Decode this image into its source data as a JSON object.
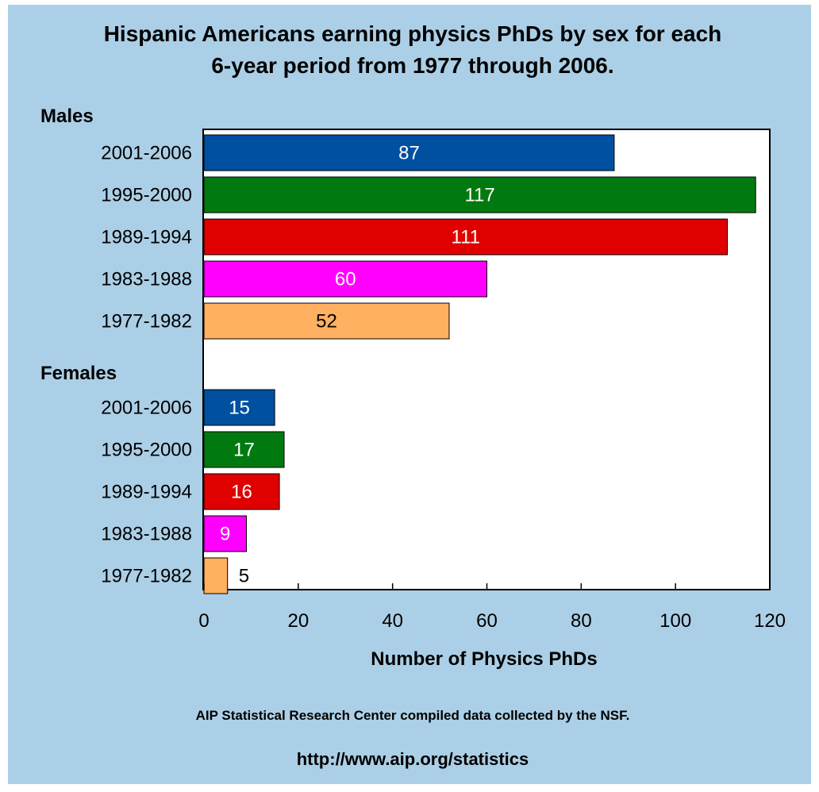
{
  "chart_data": {
    "type": "bar",
    "orientation": "horizontal",
    "title_lines": [
      "Hispanic Americans earning physics PhDs by sex for each",
      "6-year period from 1977 through 2006."
    ],
    "xlabel": "Number of Physics PhDs",
    "xlim": [
      0,
      120
    ],
    "xticks": [
      0,
      20,
      40,
      60,
      80,
      100,
      120
    ],
    "grid": false,
    "groups": [
      {
        "label": "Males",
        "bars": [
          {
            "category": "2001-2006",
            "value": 87,
            "color": "#0050a0",
            "label_color": "#ffffff"
          },
          {
            "category": "1995-2000",
            "value": 117,
            "color": "#007a10",
            "label_color": "#ffffff"
          },
          {
            "category": "1989-1994",
            "value": 111,
            "color": "#e00000",
            "label_color": "#ffffff"
          },
          {
            "category": "1983-1988",
            "value": 60,
            "color": "#ff00ff",
            "label_color": "#ffffff"
          },
          {
            "category": "1977-1982",
            "value": 52,
            "color": "#ffb060",
            "label_color": "#000000"
          }
        ]
      },
      {
        "label": "Females",
        "bars": [
          {
            "category": "2001-2006",
            "value": 15,
            "color": "#0050a0",
            "label_color": "#ffffff"
          },
          {
            "category": "1995-2000",
            "value": 17,
            "color": "#007a10",
            "label_color": "#ffffff"
          },
          {
            "category": "1989-1994",
            "value": 16,
            "color": "#e00000",
            "label_color": "#ffffff"
          },
          {
            "category": "1983-1988",
            "value": 9,
            "color": "#ff00ff",
            "label_color": "#ffffff"
          },
          {
            "category": "1977-1982",
            "value": 5,
            "color": "#ffb060",
            "label_color": "#000000",
            "label_outside": true
          }
        ]
      }
    ]
  },
  "footer": {
    "source": "AIP Statistical Research Center compiled data collected by the NSF.",
    "url": "http://www.aip.org/statistics"
  },
  "colors": {
    "background": "#abcfe6",
    "plot_area": "#ffffff"
  }
}
